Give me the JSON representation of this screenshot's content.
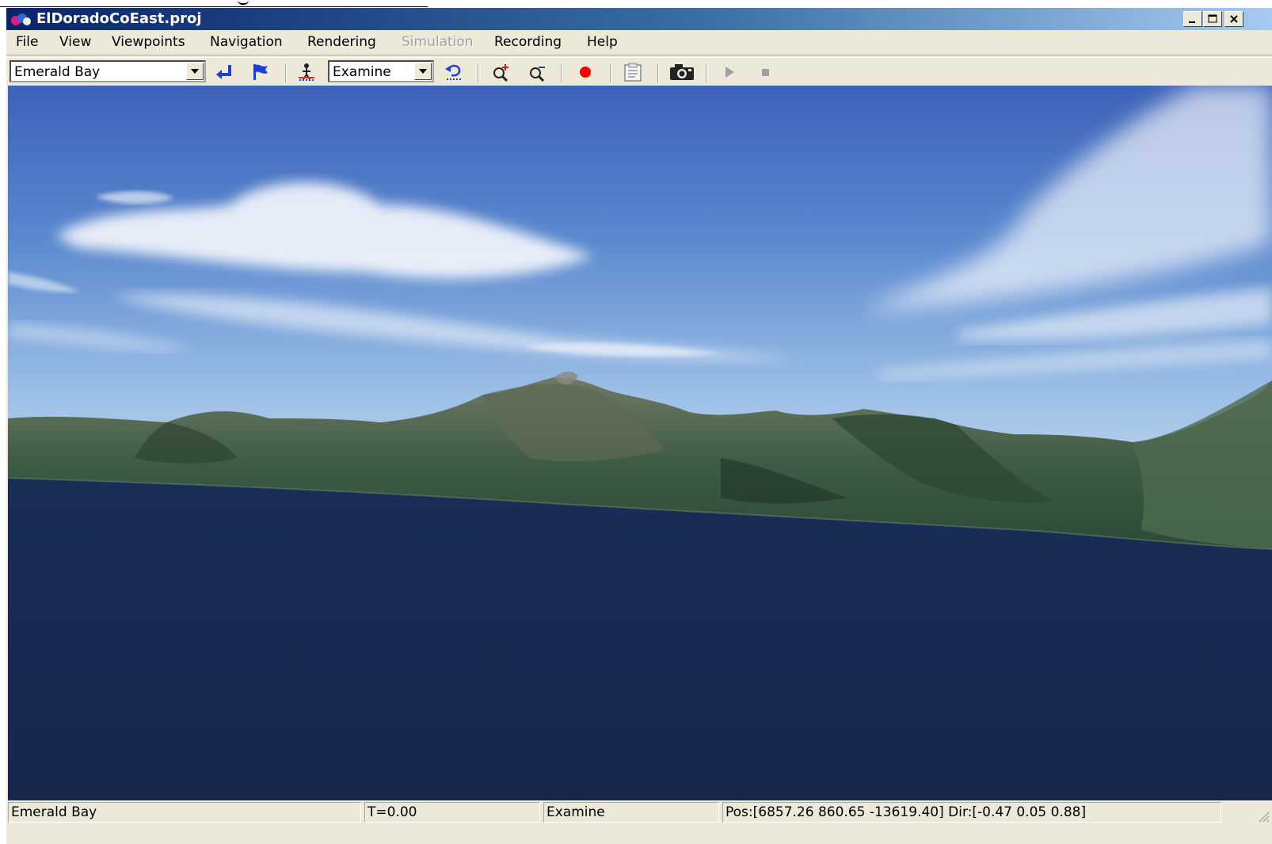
{
  "window": {
    "title": "ElDoradoCoEast.proj",
    "controls": [
      "minimize",
      "maximize",
      "close"
    ]
  },
  "menu": {
    "items": [
      {
        "label": "File",
        "enabled": true
      },
      {
        "label": "View",
        "enabled": true
      },
      {
        "label": "Viewpoints",
        "enabled": true
      },
      {
        "label": "Navigation",
        "enabled": true
      },
      {
        "label": "Rendering",
        "enabled": true
      },
      {
        "label": "Simulation",
        "enabled": false
      },
      {
        "label": "Recording",
        "enabled": true
      },
      {
        "label": "Help",
        "enabled": true
      }
    ]
  },
  "toolbar": {
    "viewpoint_value": "Emerald Bay",
    "navigation_mode_value": "Examine",
    "icons": [
      "go-to-viewpoint-icon",
      "flag-icon",
      "walk-icon",
      "undo-view-icon",
      "zoom-in-icon",
      "zoom-out-icon",
      "record-icon",
      "clipboard-icon",
      "camera-icon",
      "play-icon",
      "stop-icon"
    ],
    "record_color": "#ff0000"
  },
  "scene": {
    "description_colors": {
      "sky_top": "#3d62b8",
      "sky_horizon": "#c7dcef",
      "water": "#1a2a52"
    }
  },
  "status": {
    "viewpoint": "Emerald Bay",
    "time": "T=0.00",
    "mode": "Examine",
    "position": "Pos:[6857.26 860.65 -13619.40] Dir:[-0.47 0.05 0.88]"
  }
}
